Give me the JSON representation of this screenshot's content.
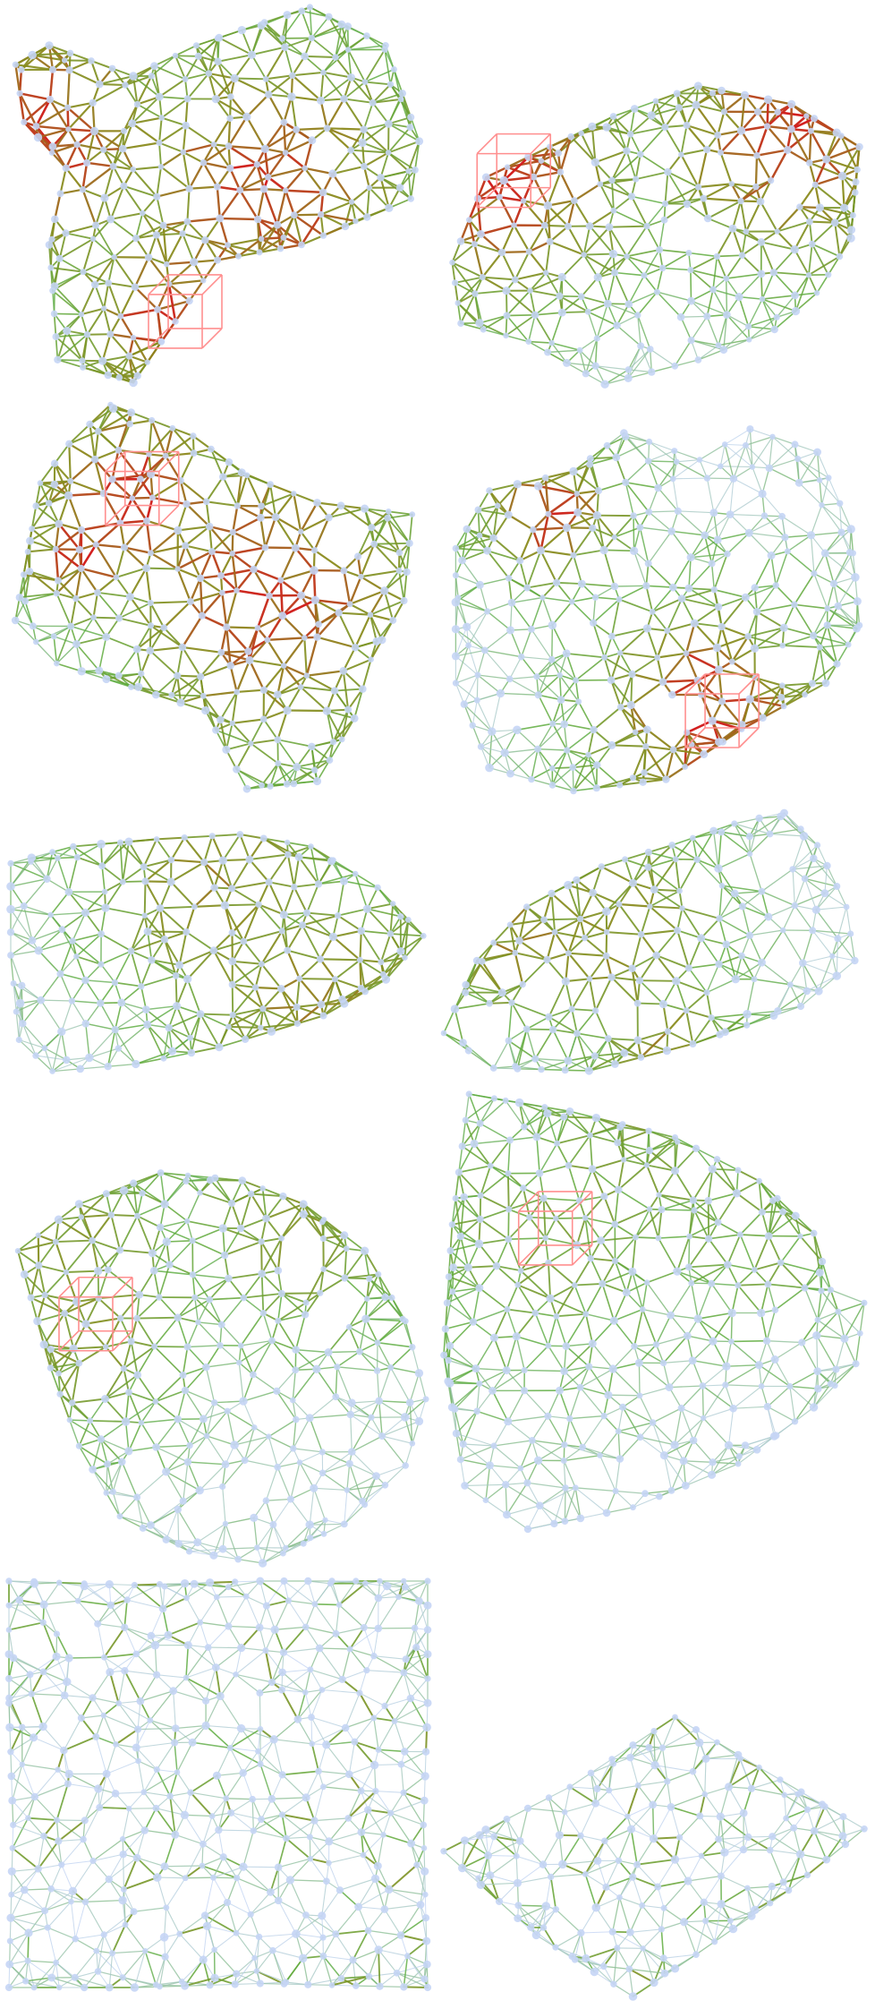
{
  "figure": {
    "description_free": true,
    "colors": {
      "background": "#ffffff",
      "node": "#c5d5f5",
      "node_edge": "#b8ccf2",
      "low_edge": "#c0d2f3",
      "mid_edge": "#5cac3e",
      "high_edge": "#8a8a1c",
      "peak_edge": "#d32020",
      "marker": "#ff8f8f"
    },
    "panels": [
      {
        "name": "mesh-1",
        "kind": "folded",
        "cx": 0.5,
        "density": 1.0,
        "stress": 0.8,
        "marker": true
      },
      {
        "name": "mesh-2",
        "kind": "folded",
        "density": 1.0,
        "stress": 0.8,
        "marker": true
      },
      {
        "name": "mesh-3",
        "kind": "folded",
        "density": 0.95,
        "stress": 0.8,
        "marker": true
      },
      {
        "name": "mesh-4",
        "kind": "folded",
        "density": 0.95,
        "stress": 0.8,
        "marker": true
      },
      {
        "name": "mesh-5",
        "kind": "partial",
        "density": 0.9,
        "stress": 0.6,
        "marker": false
      },
      {
        "name": "mesh-6",
        "kind": "partial",
        "density": 0.9,
        "stress": 0.6,
        "marker": false
      },
      {
        "name": "mesh-7",
        "kind": "cone",
        "density": 0.9,
        "stress": 0.5,
        "marker": true
      },
      {
        "name": "mesh-8",
        "kind": "cone",
        "density": 0.9,
        "stress": 0.4,
        "marker": true
      },
      {
        "name": "mesh-9",
        "kind": "flat",
        "density": 1.0,
        "stress": 0.2,
        "marker": false
      },
      {
        "name": "mesh-10",
        "kind": "flat-perspective",
        "density": 1.0,
        "stress": 0.2,
        "marker": false
      }
    ]
  }
}
